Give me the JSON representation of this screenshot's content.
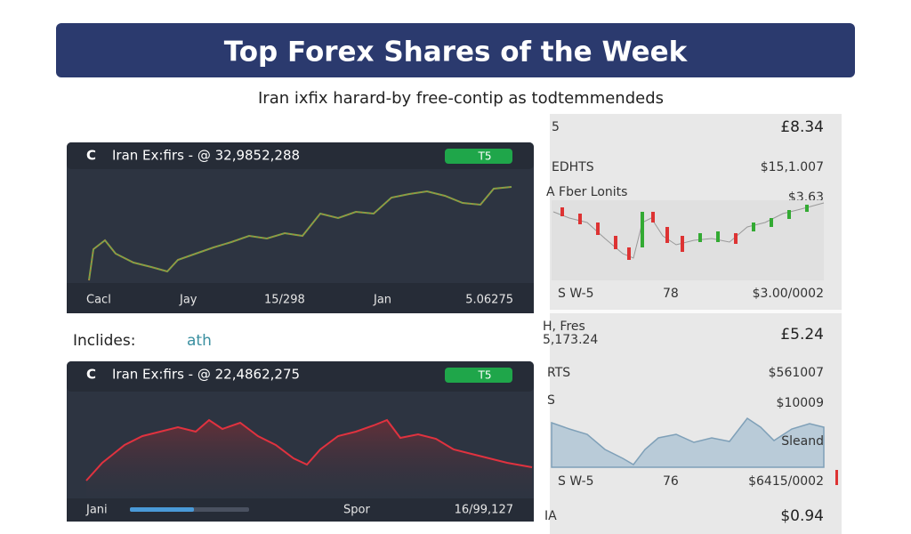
{
  "header": {
    "title": "Top Forex Shares of the Week",
    "subtitle": "Iran ixfix harard-by free-contip as todtemmendeds"
  },
  "cards": [
    {
      "title": "Iran Ex:firs - @ 32,9852,288",
      "badge": "T5",
      "footer": [
        "Cacl",
        "Jay",
        "15/298",
        "Jan",
        "5.06275"
      ]
    },
    {
      "title": "Iran Ex:firs - @ 22,4862,275",
      "badge": "T5",
      "footer": [
        "Jani",
        "Spor",
        "16/99,127"
      ]
    }
  ],
  "includes": {
    "label": "Inclides:",
    "value": "ath"
  },
  "side_panel": {
    "top": {
      "rows": [
        [
          "5",
          "£8.34"
        ],
        [
          "EDHTS",
          "$15,1.007"
        ],
        [
          "A Fber Lonits",
          "$3.63"
        ]
      ],
      "footer": [
        "S W-5",
        "78",
        "$3.00/0002"
      ]
    },
    "bottom": {
      "rows": [
        [
          "H, Fres",
          "£5.24"
        ],
        [
          "5,173.24",
          ""
        ],
        [
          "RTS",
          "$561007"
        ],
        [
          "S",
          "$10009"
        ]
      ],
      "chart_label": "Sleand",
      "footer": [
        "S W-5",
        "76",
        "$6415/0002"
      ],
      "last": [
        "IA",
        "$0.94"
      ]
    }
  }
}
